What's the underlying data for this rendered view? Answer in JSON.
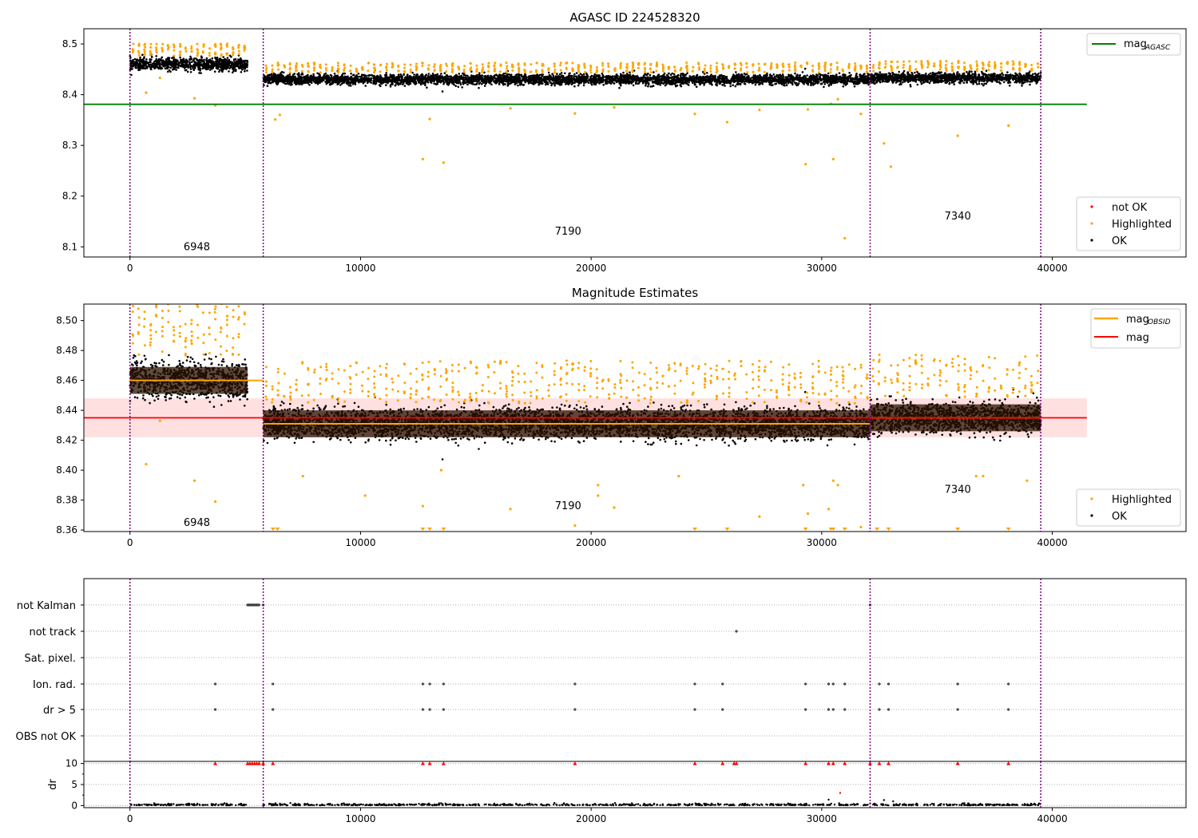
{
  "chart_data": [
    {
      "type": "scatter",
      "title": "AGASC ID 224528320",
      "xlim": [
        -2000,
        45800
      ],
      "ylim": [
        8.08,
        8.53
      ],
      "x_ticks": [
        0,
        10000,
        20000,
        30000,
        40000
      ],
      "x_tick_labels": [
        "0",
        "10000",
        "20000",
        "30000",
        "40000"
      ],
      "y_ticks": [
        8.1,
        8.2,
        8.3,
        8.4,
        8.5
      ],
      "y_tick_labels": [
        "8.1",
        "8.2",
        "8.3",
        "8.4",
        "8.5"
      ],
      "obsid_boundaries": [
        0,
        5780,
        32100,
        39500
      ],
      "obsid_labels": [
        {
          "text": "6948",
          "x": 2900,
          "y": 8.1
        },
        {
          "text": "7190",
          "x": 19000,
          "y": 8.13
        },
        {
          "text": "7340",
          "x": 35900,
          "y": 8.16
        }
      ],
      "segments": [
        {
          "x0": 0,
          "x1": 5100,
          "center": 8.46,
          "spread": 0.011
        },
        {
          "x0": 5780,
          "x1": 32100,
          "center": 8.43,
          "spread": 0.009
        },
        {
          "x0": 32100,
          "x1": 39500,
          "center": 8.433,
          "spread": 0.009
        }
      ],
      "mag_agasc": {
        "value": 8.381,
        "x0": -2000,
        "x1": 41500
      },
      "highlighted_outliers": [
        [
          700,
          8.404
        ],
        [
          1300,
          8.433
        ],
        [
          2800,
          8.393
        ],
        [
          3700,
          8.379
        ],
        [
          6300,
          8.351
        ],
        [
          6500,
          8.36
        ],
        [
          12700,
          8.273
        ],
        [
          13000,
          8.352
        ],
        [
          13600,
          8.266
        ],
        [
          16500,
          8.373
        ],
        [
          19300,
          8.363
        ],
        [
          21000,
          8.375
        ],
        [
          24500,
          8.362
        ],
        [
          25900,
          8.346
        ],
        [
          27300,
          8.37
        ],
        [
          29300,
          8.263
        ],
        [
          29400,
          8.371
        ],
        [
          30400,
          8.382
        ],
        [
          30500,
          8.273
        ],
        [
          30700,
          8.391
        ],
        [
          31000,
          8.117
        ],
        [
          31700,
          8.362
        ],
        [
          32700,
          8.304
        ],
        [
          33000,
          8.258
        ],
        [
          35900,
          8.319
        ],
        [
          38100,
          8.339
        ]
      ],
      "legend_main": {
        "entries": [
          {
            "label": "mag",
            "sub": "AGASC",
            "color": "#008000"
          }
        ]
      },
      "legend_points": {
        "entries": [
          {
            "label": "not OK",
            "color": "#ff0000"
          },
          {
            "label": "Highlighted",
            "color": "#ffa500"
          },
          {
            "label": "OK",
            "color": "#000000"
          }
        ]
      }
    },
    {
      "type": "scatter",
      "title": "Magnitude Estimates",
      "xlim": [
        -2000,
        45800
      ],
      "ylim": [
        8.359,
        8.511
      ],
      "x_ticks": [
        0,
        10000,
        20000,
        30000,
        40000
      ],
      "x_tick_labels": [
        "0",
        "10000",
        "20000",
        "30000",
        "40000"
      ],
      "y_ticks": [
        8.36,
        8.38,
        8.4,
        8.42,
        8.44,
        8.46,
        8.48,
        8.5
      ],
      "y_tick_labels": [
        "8.36",
        "8.38",
        "8.40",
        "8.42",
        "8.44",
        "8.46",
        "8.48",
        "8.50"
      ],
      "obsid_boundaries": [
        0,
        5780,
        32100,
        39500
      ],
      "obsid_labels": [
        {
          "text": "6948",
          "x": 2900,
          "y": 8.365
        },
        {
          "text": "7190",
          "x": 19000,
          "y": 8.376
        },
        {
          "text": "7340",
          "x": 35900,
          "y": 8.387
        }
      ],
      "segments": [
        {
          "x0": 0,
          "x1": 5100,
          "center": 8.46,
          "spread": 0.011,
          "band": [
            8.451,
            8.469
          ]
        },
        {
          "x0": 5780,
          "x1": 32100,
          "center": 8.431,
          "spread": 0.009,
          "band": [
            8.422,
            8.44
          ]
        },
        {
          "x0": 32100,
          "x1": 39500,
          "center": 8.435,
          "spread": 0.009,
          "band": [
            8.426,
            8.444
          ]
        }
      ],
      "mag_obsid": [
        {
          "x0": 0,
          "x1": 5780,
          "value": 8.46
        },
        {
          "x0": 5780,
          "x1": 32100,
          "value": 8.431
        },
        {
          "x0": 32100,
          "x1": 39500,
          "value": 8.435
        }
      ],
      "mag": {
        "value": 8.435,
        "band": [
          8.422,
          8.448
        ],
        "x0": -2000,
        "x1": 41500
      },
      "highlighted_outliers": [
        [
          700,
          8.404
        ],
        [
          1300,
          8.433
        ],
        [
          2800,
          8.393
        ],
        [
          3700,
          8.379
        ],
        [
          7500,
          8.396
        ],
        [
          10200,
          8.383
        ],
        [
          12700,
          8.376
        ],
        [
          13500,
          8.4
        ],
        [
          16500,
          8.374
        ],
        [
          19300,
          8.363
        ],
        [
          20300,
          8.39
        ],
        [
          20300,
          8.383
        ],
        [
          21000,
          8.375
        ],
        [
          23800,
          8.396
        ],
        [
          27300,
          8.369
        ],
        [
          29200,
          8.39
        ],
        [
          29400,
          8.371
        ],
        [
          30300,
          8.374
        ],
        [
          30500,
          8.393
        ],
        [
          30700,
          8.39
        ],
        [
          31700,
          8.362
        ],
        [
          36700,
          8.396
        ],
        [
          37000,
          8.396
        ],
        [
          38900,
          8.393
        ]
      ],
      "clipped_markers": [
        6200,
        6400,
        12700,
        13000,
        13600,
        24500,
        25900,
        29300,
        30400,
        30500,
        31000,
        32400,
        32900,
        35900,
        38100
      ],
      "legend_lines": {
        "entries": [
          {
            "label": "mag",
            "sub": "OBSID",
            "color": "#ffa500"
          },
          {
            "label": "mag",
            "sub": "",
            "color": "#ff0000"
          }
        ]
      },
      "legend_points": {
        "entries": [
          {
            "label": "Highlighted",
            "color": "#ffa500"
          },
          {
            "label": "OK",
            "color": "#000000"
          }
        ]
      }
    },
    {
      "type": "scatter",
      "title": "",
      "xlim": [
        -2000,
        45800
      ],
      "x_ticks": [
        0,
        10000,
        20000,
        30000,
        40000
      ],
      "x_tick_labels": [
        "0",
        "10000",
        "20000",
        "30000",
        "40000"
      ],
      "obsid_boundaries": [
        0,
        5780,
        32100,
        39500
      ],
      "flag_rows": [
        "not Kalman",
        "not track",
        "Sat. pixel.",
        "Ion. rad.",
        "dr > 5",
        "OBS not OK"
      ],
      "flags": {
        "not Kalman": [
          5100,
          5150,
          5200,
          5250,
          5300,
          5350,
          5400,
          5450,
          5500,
          5550,
          5600,
          5780,
          32100
        ],
        "not track": [
          26300
        ],
        "Sat. pixel.": [],
        "Ion. rad.": [
          3700,
          6200,
          12700,
          13000,
          13600,
          19300,
          24500,
          25700,
          29300,
          30300,
          30500,
          31000,
          32500,
          32900,
          35900,
          38100
        ],
        "dr > 5": [
          3700,
          6200,
          12700,
          13000,
          13600,
          19300,
          24500,
          25700,
          29300,
          30300,
          30500,
          31000,
          32500,
          32900,
          35900,
          38100
        ],
        "OBS not OK": []
      },
      "dr_ylim": [
        -0.5,
        10.5
      ],
      "dr_y_ticks": [
        0,
        5,
        10
      ],
      "dr_y_tick_labels": [
        "0",
        "5",
        "10"
      ],
      "dr_ylabel": "dr",
      "dr_clipped": [
        3700,
        5100,
        5200,
        5300,
        5400,
        5500,
        5600,
        5780,
        6200,
        12700,
        13000,
        13600,
        19300,
        24500,
        25700,
        26200,
        26300,
        29300,
        30300,
        30500,
        31000,
        32100,
        32500,
        32900,
        35900,
        38100
      ],
      "dr_outliers": [
        [
          30300,
          1.4
        ],
        [
          30800,
          3.0
        ],
        [
          33100,
          1.0
        ],
        [
          32700,
          1.3
        ]
      ],
      "segments": [
        {
          "x0": 0,
          "x1": 5100
        },
        {
          "x0": 5780,
          "x1": 32100
        },
        {
          "x0": 32100,
          "x1": 39500
        }
      ]
    }
  ]
}
